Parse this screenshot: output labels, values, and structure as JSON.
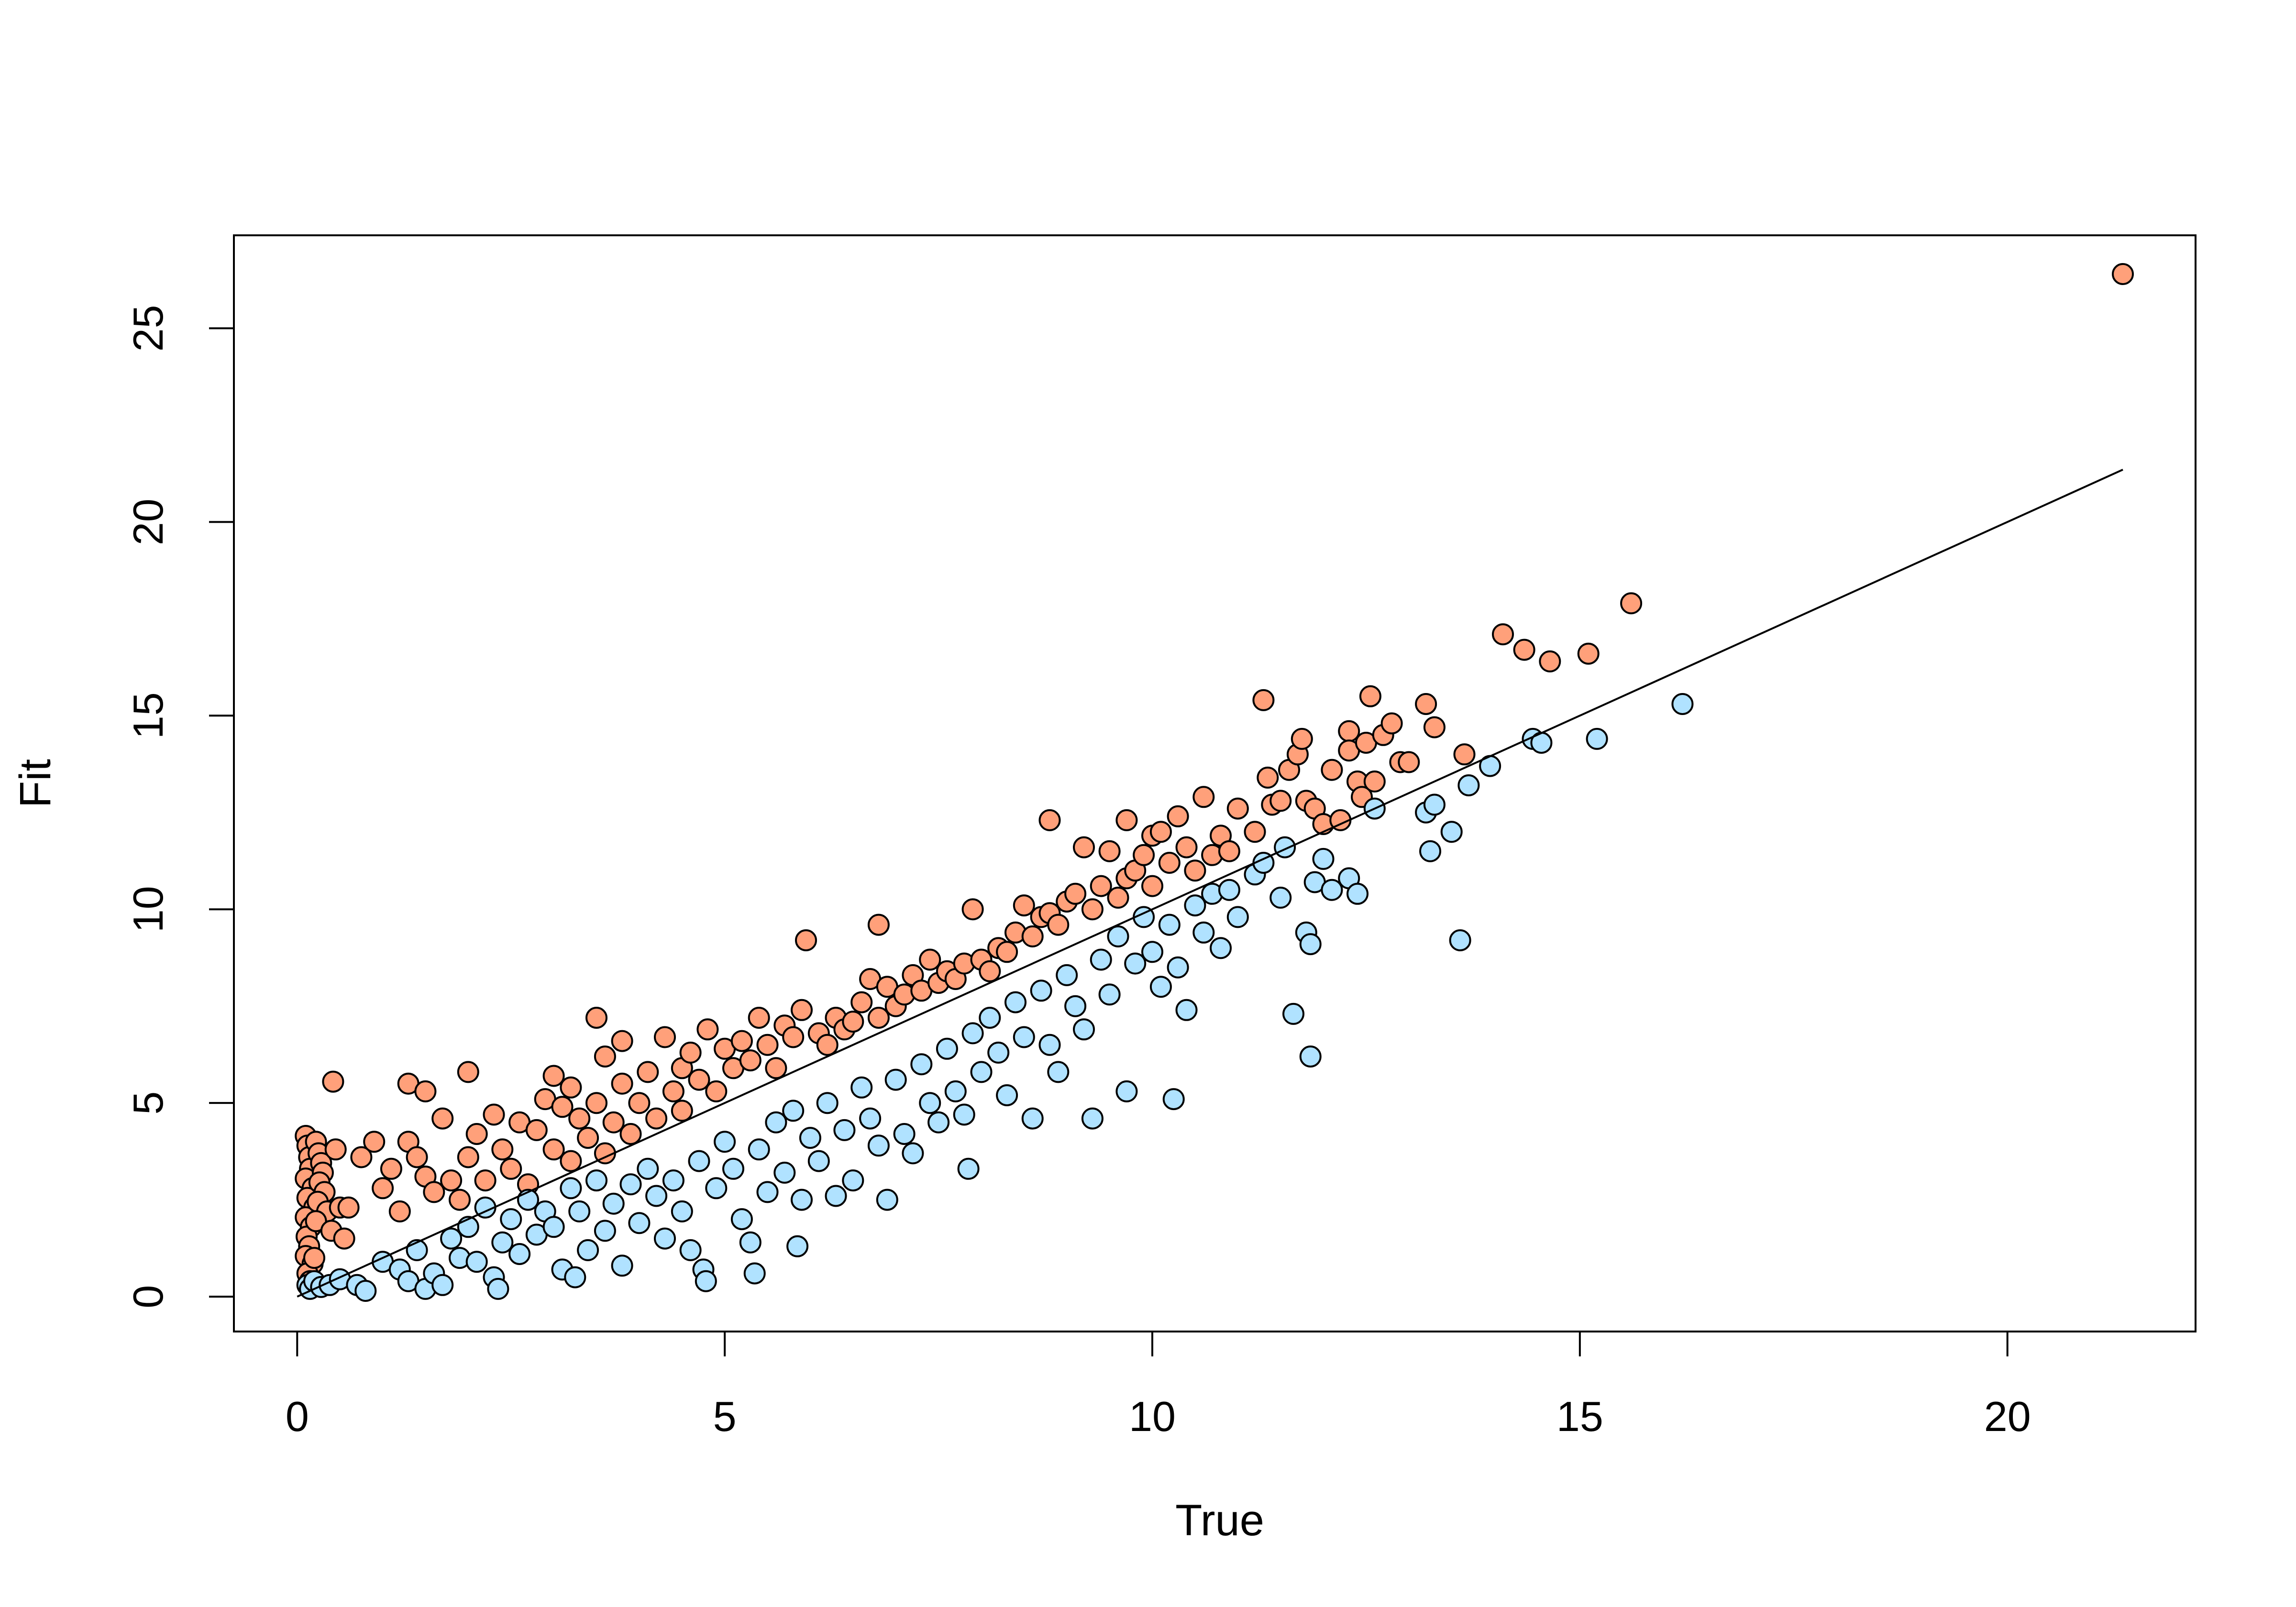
{
  "chart_data": {
    "type": "scatter",
    "title": "",
    "xlabel": "True",
    "ylabel": "Fit",
    "xlim": [
      -0.74,
      22.2
    ],
    "ylim": [
      -0.9,
      27.4
    ],
    "x_ticks": [
      0,
      5,
      10,
      15,
      20
    ],
    "y_ticks": [
      0,
      5,
      10,
      15,
      20,
      25
    ],
    "grid": false,
    "legend": "none",
    "colors": {
      "above": "#FFA07A",
      "below": "#B0E2FF",
      "stroke": "#000000",
      "line": "#000000"
    },
    "reference_line": {
      "x": [
        0.0,
        21.35
      ],
      "y": [
        0.0,
        21.35
      ]
    },
    "series": [
      {
        "color": "#FFA07A",
        "points": [
          [
            0.1,
            4.15
          ],
          [
            0.12,
            3.9
          ],
          [
            0.14,
            3.6
          ],
          [
            0.15,
            3.3
          ],
          [
            0.1,
            3.05
          ],
          [
            0.18,
            2.8
          ],
          [
            0.12,
            2.55
          ],
          [
            0.2,
            2.3
          ],
          [
            0.1,
            2.05
          ],
          [
            0.16,
            1.8
          ],
          [
            0.11,
            1.55
          ],
          [
            0.14,
            1.3
          ],
          [
            0.1,
            1.05
          ],
          [
            0.18,
            0.85
          ],
          [
            0.12,
            0.6
          ],
          [
            0.15,
            0.4
          ],
          [
            0.22,
            4.0
          ],
          [
            0.25,
            3.7
          ],
          [
            0.28,
            3.45
          ],
          [
            0.3,
            3.2
          ],
          [
            0.26,
            2.95
          ],
          [
            0.32,
            2.7
          ],
          [
            0.24,
            2.45
          ],
          [
            0.35,
            2.2
          ],
          [
            0.22,
            1.95
          ],
          [
            0.4,
            1.7
          ],
          [
            0.45,
            3.8
          ],
          [
            0.5,
            2.3
          ],
          [
            0.42,
            5.55
          ],
          [
            0.6,
            2.3
          ],
          [
            0.55,
            1.5
          ],
          [
            0.2,
            1.0
          ],
          [
            0.75,
            3.6
          ],
          [
            0.9,
            4.0
          ],
          [
            1.0,
            2.8
          ],
          [
            1.1,
            3.3
          ],
          [
            1.2,
            2.2
          ],
          [
            1.3,
            5.5
          ],
          [
            1.3,
            4.0
          ],
          [
            1.4,
            3.6
          ],
          [
            1.5,
            3.1
          ],
          [
            1.5,
            5.3
          ],
          [
            1.6,
            2.7
          ],
          [
            1.7,
            4.6
          ],
          [
            1.8,
            3.0
          ],
          [
            1.9,
            2.5
          ],
          [
            2.0,
            5.8
          ],
          [
            2.0,
            3.6
          ],
          [
            2.1,
            4.2
          ],
          [
            2.2,
            3.0
          ],
          [
            2.3,
            4.7
          ],
          [
            2.4,
            3.8
          ],
          [
            2.5,
            3.3
          ],
          [
            2.6,
            4.5
          ],
          [
            2.7,
            2.9
          ],
          [
            2.8,
            4.3
          ],
          [
            2.9,
            5.1
          ],
          [
            3.0,
            5.7
          ],
          [
            3.0,
            3.8
          ],
          [
            3.1,
            4.9
          ],
          [
            3.2,
            3.5
          ],
          [
            3.2,
            5.4
          ],
          [
            3.3,
            4.6
          ],
          [
            3.4,
            4.1
          ],
          [
            3.5,
            7.2
          ],
          [
            3.5,
            5.0
          ],
          [
            3.6,
            3.7
          ],
          [
            3.6,
            6.2
          ],
          [
            3.7,
            4.5
          ],
          [
            3.8,
            6.6
          ],
          [
            3.8,
            5.5
          ],
          [
            3.9,
            4.2
          ],
          [
            4.0,
            5.0
          ],
          [
            4.1,
            5.8
          ],
          [
            4.2,
            4.6
          ],
          [
            4.3,
            6.7
          ],
          [
            4.4,
            5.3
          ],
          [
            4.5,
            5.9
          ],
          [
            4.5,
            4.8
          ],
          [
            4.6,
            6.3
          ],
          [
            4.7,
            5.6
          ],
          [
            4.8,
            6.9
          ],
          [
            4.9,
            5.3
          ],
          [
            5.0,
            6.4
          ],
          [
            5.1,
            5.9
          ],
          [
            5.2,
            6.6
          ],
          [
            5.3,
            6.1
          ],
          [
            5.4,
            7.2
          ],
          [
            5.5,
            6.5
          ],
          [
            5.6,
            5.9
          ],
          [
            5.7,
            7.0
          ],
          [
            5.8,
            6.7
          ],
          [
            5.9,
            7.4
          ],
          [
            5.95,
            9.2
          ],
          [
            6.1,
            6.8
          ],
          [
            6.2,
            6.5
          ],
          [
            6.3,
            7.2
          ],
          [
            6.4,
            6.9
          ],
          [
            6.5,
            7.1
          ],
          [
            6.6,
            7.6
          ],
          [
            6.7,
            8.2
          ],
          [
            6.8,
            9.6
          ],
          [
            6.8,
            7.2
          ],
          [
            6.9,
            8.0
          ],
          [
            7.0,
            7.5
          ],
          [
            7.1,
            7.8
          ],
          [
            7.2,
            8.3
          ],
          [
            7.3,
            7.9
          ],
          [
            7.4,
            8.7
          ],
          [
            7.5,
            8.1
          ],
          [
            7.6,
            8.4
          ],
          [
            7.7,
            8.2
          ],
          [
            7.8,
            8.6
          ],
          [
            7.9,
            10.0
          ],
          [
            8.0,
            8.7
          ],
          [
            8.1,
            8.4
          ],
          [
            8.2,
            9.0
          ],
          [
            8.3,
            8.9
          ],
          [
            8.4,
            9.4
          ],
          [
            8.5,
            10.1
          ],
          [
            8.6,
            9.3
          ],
          [
            8.7,
            9.8
          ],
          [
            8.8,
            12.3
          ],
          [
            8.8,
            9.9
          ],
          [
            8.9,
            9.6
          ],
          [
            9.0,
            10.2
          ],
          [
            9.1,
            10.4
          ],
          [
            9.2,
            11.6
          ],
          [
            9.3,
            10.0
          ],
          [
            9.4,
            10.6
          ],
          [
            9.5,
            11.5
          ],
          [
            9.6,
            10.3
          ],
          [
            9.7,
            12.3
          ],
          [
            9.7,
            10.8
          ],
          [
            9.8,
            11.0
          ],
          [
            9.9,
            11.4
          ],
          [
            10.0,
            11.9
          ],
          [
            10.0,
            10.6
          ],
          [
            10.1,
            12.0
          ],
          [
            10.2,
            11.2
          ],
          [
            10.3,
            12.4
          ],
          [
            10.4,
            11.6
          ],
          [
            10.5,
            11.0
          ],
          [
            10.6,
            12.9
          ],
          [
            10.7,
            11.4
          ],
          [
            10.8,
            11.9
          ],
          [
            10.9,
            11.5
          ],
          [
            11.0,
            12.6
          ],
          [
            11.2,
            12.0
          ],
          [
            11.3,
            15.4
          ],
          [
            11.35,
            13.4
          ],
          [
            11.4,
            12.7
          ],
          [
            11.5,
            12.8
          ],
          [
            11.6,
            13.6
          ],
          [
            11.7,
            14.0
          ],
          [
            11.75,
            14.4
          ],
          [
            11.8,
            12.8
          ],
          [
            11.9,
            12.6
          ],
          [
            12.0,
            12.2
          ],
          [
            12.1,
            13.6
          ],
          [
            12.2,
            12.3
          ],
          [
            12.3,
            14.6
          ],
          [
            12.3,
            14.1
          ],
          [
            12.4,
            13.3
          ],
          [
            12.45,
            12.9
          ],
          [
            12.5,
            14.3
          ],
          [
            12.55,
            15.5
          ],
          [
            12.6,
            13.3
          ],
          [
            12.7,
            14.5
          ],
          [
            12.8,
            14.8
          ],
          [
            12.9,
            13.8
          ],
          [
            13.0,
            13.8
          ],
          [
            13.2,
            15.3
          ],
          [
            13.3,
            14.7
          ],
          [
            13.65,
            14.0
          ],
          [
            14.1,
            17.1
          ],
          [
            14.35,
            16.7
          ],
          [
            14.65,
            16.4
          ],
          [
            15.1,
            16.6
          ],
          [
            15.6,
            17.9
          ],
          [
            21.35,
            26.4
          ]
        ]
      },
      {
        "color": "#B0E2FF",
        "points": [
          [
            0.12,
            0.3
          ],
          [
            0.15,
            0.2
          ],
          [
            0.2,
            0.4
          ],
          [
            0.28,
            0.25
          ],
          [
            0.38,
            0.3
          ],
          [
            0.5,
            0.45
          ],
          [
            0.7,
            0.3
          ],
          [
            0.8,
            0.15
          ],
          [
            1.0,
            0.9
          ],
          [
            1.2,
            0.7
          ],
          [
            1.3,
            0.4
          ],
          [
            1.4,
            1.2
          ],
          [
            1.5,
            0.2
          ],
          [
            1.6,
            0.6
          ],
          [
            1.7,
            0.3
          ],
          [
            1.8,
            1.5
          ],
          [
            1.9,
            1.0
          ],
          [
            2.0,
            1.8
          ],
          [
            2.1,
            0.9
          ],
          [
            2.2,
            2.3
          ],
          [
            2.3,
            0.5
          ],
          [
            2.35,
            0.2
          ],
          [
            2.4,
            1.4
          ],
          [
            2.5,
            2.0
          ],
          [
            2.6,
            1.1
          ],
          [
            2.7,
            2.5
          ],
          [
            2.8,
            1.6
          ],
          [
            2.9,
            2.2
          ],
          [
            3.0,
            1.8
          ],
          [
            3.1,
            0.7
          ],
          [
            3.2,
            2.8
          ],
          [
            3.25,
            0.5
          ],
          [
            3.3,
            2.2
          ],
          [
            3.4,
            1.2
          ],
          [
            3.5,
            3.0
          ],
          [
            3.6,
            1.7
          ],
          [
            3.7,
            2.4
          ],
          [
            3.8,
            0.8
          ],
          [
            3.9,
            2.9
          ],
          [
            4.0,
            1.9
          ],
          [
            4.1,
            3.3
          ],
          [
            4.2,
            2.6
          ],
          [
            4.3,
            1.5
          ],
          [
            4.4,
            3.0
          ],
          [
            4.5,
            2.2
          ],
          [
            4.6,
            1.2
          ],
          [
            4.7,
            3.5
          ],
          [
            4.75,
            0.7
          ],
          [
            4.78,
            0.4
          ],
          [
            4.9,
            2.8
          ],
          [
            5.0,
            4.0
          ],
          [
            5.1,
            3.3
          ],
          [
            5.2,
            2.0
          ],
          [
            5.3,
            1.4
          ],
          [
            5.35,
            0.6
          ],
          [
            5.4,
            3.8
          ],
          [
            5.5,
            2.7
          ],
          [
            5.6,
            4.5
          ],
          [
            5.7,
            3.2
          ],
          [
            5.8,
            4.8
          ],
          [
            5.85,
            1.3
          ],
          [
            5.9,
            2.5
          ],
          [
            6.0,
            4.1
          ],
          [
            6.1,
            3.5
          ],
          [
            6.2,
            5.0
          ],
          [
            6.3,
            2.6
          ],
          [
            6.4,
            4.3
          ],
          [
            6.5,
            3.0
          ],
          [
            6.6,
            5.4
          ],
          [
            6.7,
            4.6
          ],
          [
            6.8,
            3.9
          ],
          [
            6.9,
            2.5
          ],
          [
            7.0,
            5.6
          ],
          [
            7.1,
            4.2
          ],
          [
            7.2,
            3.7
          ],
          [
            7.3,
            6.0
          ],
          [
            7.4,
            5.0
          ],
          [
            7.5,
            4.5
          ],
          [
            7.6,
            6.4
          ],
          [
            7.7,
            5.3
          ],
          [
            7.8,
            4.7
          ],
          [
            7.85,
            3.3
          ],
          [
            7.9,
            6.8
          ],
          [
            8.0,
            5.8
          ],
          [
            8.1,
            7.2
          ],
          [
            8.2,
            6.3
          ],
          [
            8.3,
            5.2
          ],
          [
            8.4,
            7.6
          ],
          [
            8.5,
            6.7
          ],
          [
            8.6,
            4.6
          ],
          [
            8.7,
            7.9
          ],
          [
            8.8,
            6.5
          ],
          [
            8.9,
            5.8
          ],
          [
            9.0,
            8.3
          ],
          [
            9.1,
            7.5
          ],
          [
            9.2,
            6.9
          ],
          [
            9.3,
            4.6
          ],
          [
            9.4,
            8.7
          ],
          [
            9.5,
            7.8
          ],
          [
            9.6,
            9.3
          ],
          [
            9.7,
            5.3
          ],
          [
            9.8,
            8.6
          ],
          [
            9.9,
            9.8
          ],
          [
            10.0,
            8.9
          ],
          [
            10.1,
            8.0
          ],
          [
            10.2,
            9.6
          ],
          [
            10.25,
            5.1
          ],
          [
            10.3,
            8.5
          ],
          [
            10.4,
            7.4
          ],
          [
            10.5,
            10.1
          ],
          [
            10.6,
            9.4
          ],
          [
            10.7,
            10.4
          ],
          [
            10.8,
            9.0
          ],
          [
            10.9,
            10.5
          ],
          [
            11.0,
            9.8
          ],
          [
            11.2,
            10.9
          ],
          [
            11.3,
            11.2
          ],
          [
            11.5,
            10.3
          ],
          [
            11.55,
            11.6
          ],
          [
            11.65,
            7.3
          ],
          [
            11.8,
            9.4
          ],
          [
            11.85,
            6.2
          ],
          [
            11.85,
            9.1
          ],
          [
            11.9,
            10.7
          ],
          [
            12.0,
            11.3
          ],
          [
            12.1,
            10.5
          ],
          [
            12.3,
            10.8
          ],
          [
            12.4,
            10.4
          ],
          [
            12.6,
            12.6
          ],
          [
            13.2,
            12.5
          ],
          [
            13.25,
            11.5
          ],
          [
            13.3,
            12.7
          ],
          [
            13.5,
            12.0
          ],
          [
            13.6,
            9.2
          ],
          [
            13.7,
            13.2
          ],
          [
            13.95,
            13.7
          ],
          [
            14.45,
            14.4
          ],
          [
            14.55,
            14.3
          ],
          [
            15.2,
            14.4
          ],
          [
            16.2,
            15.3
          ]
        ]
      }
    ]
  }
}
